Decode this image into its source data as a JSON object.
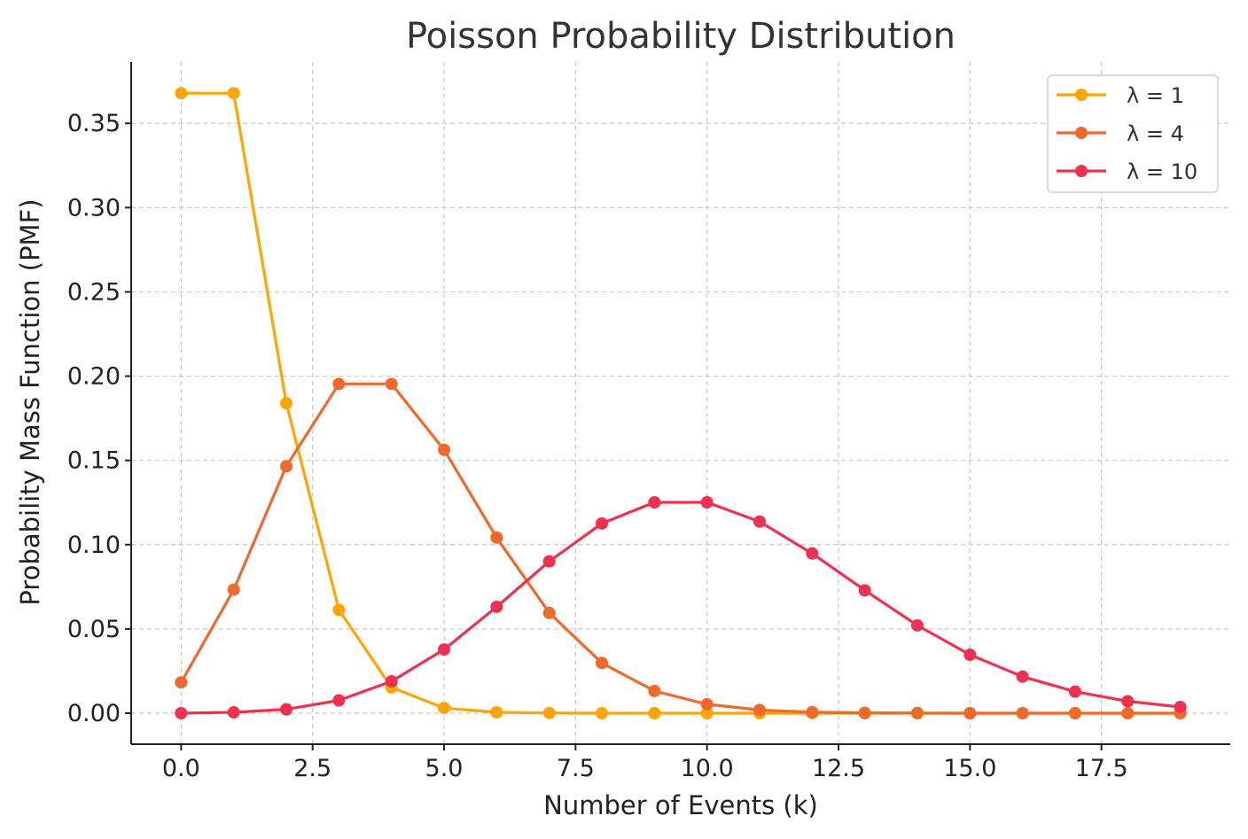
{
  "chart_data": {
    "type": "line",
    "title": "Poisson Probability Distribution",
    "xlabel": "Number of Events (k)",
    "ylabel": "Probability Mass Function (PMF)",
    "xlim": [
      -0.95,
      19.95
    ],
    "ylim": [
      -0.0184,
      0.3864
    ],
    "xticks": [
      0.0,
      2.5,
      5.0,
      7.5,
      10.0,
      12.5,
      15.0,
      17.5
    ],
    "xtick_labels": [
      "0.0",
      "2.5",
      "5.0",
      "7.5",
      "10.0",
      "12.5",
      "15.0",
      "17.5"
    ],
    "yticks": [
      0.0,
      0.05,
      0.1,
      0.15,
      0.2,
      0.25,
      0.3,
      0.35
    ],
    "ytick_labels": [
      "0.00",
      "0.05",
      "0.10",
      "0.15",
      "0.20",
      "0.25",
      "0.30",
      "0.35"
    ],
    "grid": true,
    "legend_position": "top-right",
    "x": [
      0,
      1,
      2,
      3,
      4,
      5,
      6,
      7,
      8,
      9,
      10,
      11,
      12,
      13,
      14,
      15,
      16,
      17,
      18,
      19
    ],
    "series": [
      {
        "name": "λ = 1",
        "color": "#FFA500",
        "values": [
          0.3679,
          0.3679,
          0.1839,
          0.0613,
          0.0153,
          0.0031,
          0.0005,
          0.0001,
          0.0,
          0.0,
          0.0,
          0.0,
          0.0,
          0.0,
          0.0,
          0.0,
          0.0,
          0.0,
          0.0,
          0.0
        ]
      },
      {
        "name": "λ = 4",
        "color": "#F0692A",
        "values": [
          0.0183,
          0.0733,
          0.1465,
          0.1954,
          0.1954,
          0.1563,
          0.1042,
          0.0595,
          0.0298,
          0.0132,
          0.0053,
          0.0019,
          0.0006,
          0.0002,
          0.0001,
          0.0,
          0.0,
          0.0,
          0.0,
          0.0
        ]
      },
      {
        "name": "λ = 10",
        "color": "#F03050",
        "values": [
          0.0,
          0.0005,
          0.0023,
          0.0076,
          0.0189,
          0.0378,
          0.0631,
          0.0901,
          0.1126,
          0.1251,
          0.1251,
          0.1137,
          0.0948,
          0.0729,
          0.0521,
          0.0347,
          0.0217,
          0.0128,
          0.0071,
          0.0037
        ]
      }
    ]
  }
}
